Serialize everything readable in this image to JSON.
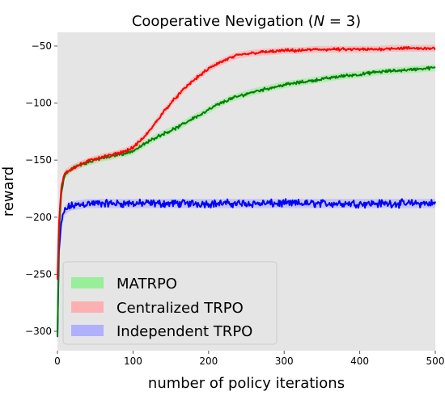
{
  "chart_data": {
    "type": "line",
    "title": "Cooperative Nevigation (N = 3)",
    "title_parts": {
      "prefix": "Cooperative Nevigation (",
      "var": "N",
      "suffix": " = 3)"
    },
    "xlabel": "number of policy iterations",
    "ylabel": "reward",
    "xlim": [
      0,
      500
    ],
    "ylim": [
      -317,
      -38
    ],
    "xticks": [
      0,
      100,
      200,
      300,
      400,
      500
    ],
    "yticks": [
      -300,
      -250,
      -200,
      -150,
      -100,
      -50
    ],
    "grid": false,
    "background": "#e5e5e5",
    "legend_position": "lower-left",
    "x": [
      0,
      2,
      5,
      8,
      10,
      15,
      20,
      30,
      40,
      50,
      60,
      70,
      80,
      90,
      100,
      110,
      120,
      130,
      140,
      150,
      160,
      170,
      180,
      190,
      200,
      210,
      220,
      230,
      240,
      250,
      260,
      280,
      300,
      320,
      340,
      360,
      380,
      400,
      420,
      440,
      460,
      480,
      500
    ],
    "series": [
      {
        "name": "MATRPO",
        "color": "#008000",
        "band_color": "#90ee90",
        "values": [
          -305,
          -215,
          -180,
          -168,
          -163,
          -160,
          -157,
          -154,
          -152,
          -150,
          -148,
          -147,
          -145,
          -144,
          -142,
          -138,
          -134,
          -130,
          -127,
          -124,
          -121,
          -117,
          -113,
          -110,
          -106,
          -102,
          -99,
          -96,
          -94,
          -92,
          -90,
          -87,
          -84,
          -82,
          -80,
          -78,
          -76,
          -75,
          -73,
          -72,
          -71,
          -70,
          -69
        ]
      },
      {
        "name": "Centralized TRPO",
        "color": "#ff0000",
        "band_color": "#ffaaaa",
        "values": [
          -255,
          -205,
          -175,
          -165,
          -161,
          -159,
          -157,
          -154,
          -151,
          -149,
          -147,
          -146,
          -144,
          -142,
          -139,
          -133,
          -126,
          -117,
          -108,
          -100,
          -93,
          -86,
          -80,
          -75,
          -70,
          -66,
          -63,
          -60,
          -58,
          -57,
          -56,
          -55,
          -54,
          -54,
          -53,
          -53,
          -53,
          -53,
          -53,
          -52,
          -52,
          -52,
          -52
        ]
      },
      {
        "name": "Independent TRPO",
        "color": "#0000ff",
        "band_color": "#aaaaff",
        "values": [
          -305,
          -230,
          -205,
          -198,
          -194,
          -191,
          -190,
          -189,
          -188,
          -188,
          -188,
          -188,
          -188,
          -188,
          -188,
          -188,
          -188,
          -188,
          -188,
          -188,
          -188,
          -188,
          -188,
          -188,
          -188,
          -188,
          -188,
          -188,
          -188,
          -188,
          -188,
          -188,
          -188,
          -188,
          -188,
          -188,
          -188,
          -188,
          -188,
          -188,
          -188,
          -188,
          -188
        ]
      }
    ]
  }
}
